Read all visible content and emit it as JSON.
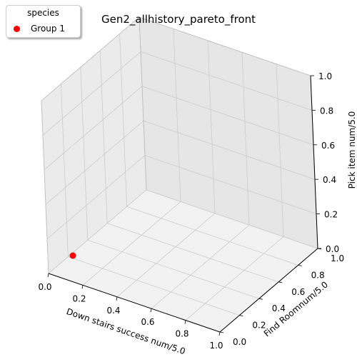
{
  "chart_data": {
    "type": "scatter",
    "projection": "3d",
    "title": "Gen2_allhistory_pareto_front",
    "xlabel": "Down stairs success num/5.0",
    "ylabel": "Find Roomnum/5.0",
    "zlabel": "Pick item num/5.0",
    "xlim": [
      0,
      1
    ],
    "ylim": [
      0,
      1
    ],
    "zlim": [
      0,
      1
    ],
    "xticks": [
      "0.0",
      "0.2",
      "0.4",
      "0.6",
      "0.8",
      "1.0"
    ],
    "yticks": [
      "0.0",
      "0.2",
      "0.4",
      "0.6",
      "0.8",
      "1.0"
    ],
    "zticks": [
      "0.0",
      "0.2",
      "0.4",
      "0.6",
      "0.8",
      "1.0"
    ],
    "grid": true,
    "legend": {
      "title": "species",
      "placement": "top-left",
      "entries": [
        {
          "label": "Group 1",
          "color": "#ff0000"
        }
      ]
    },
    "series": [
      {
        "name": "Group 1",
        "color": "#ff0000",
        "points": [
          {
            "x": 0.0,
            "y": 0.0,
            "z": 0.0
          }
        ]
      }
    ]
  }
}
